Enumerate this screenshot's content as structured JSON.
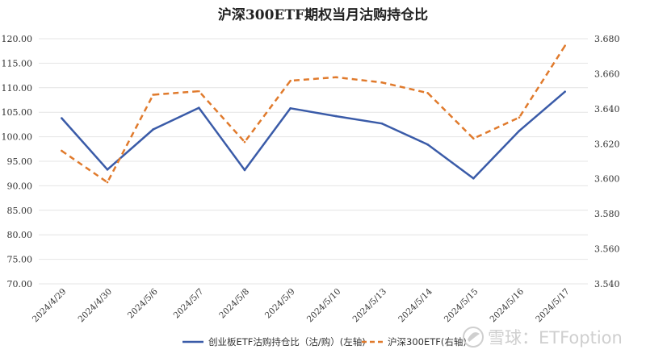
{
  "chart_data": {
    "type": "line",
    "title": "沪深300ETF期权当月沽购持仓比",
    "categories": [
      "2024/4/29",
      "2024/4/30",
      "2024/5/6",
      "2024/5/7",
      "2024/5/8",
      "2024/5/9",
      "2024/5/10",
      "2024/5/13",
      "2024/5/14",
      "2024/5/15",
      "2024/5/16",
      "2024/5/17"
    ],
    "left_axis": {
      "min": 70,
      "max": 120,
      "step": 5,
      "decimals": 2
    },
    "right_axis": {
      "min": 3.54,
      "max": 3.68,
      "step": 0.02,
      "decimals": 3
    },
    "grid": true,
    "legend_position": "bottom",
    "series": [
      {
        "name": "创业板ETF沽购持仓比（沽/购）(左轴)",
        "axis": "left",
        "color": "#3a5ba8",
        "style": "solid",
        "values": [
          103.8,
          93.3,
          101.5,
          105.9,
          93.2,
          105.8,
          104.2,
          102.7,
          98.4,
          91.5,
          101.2,
          109.2
        ]
      },
      {
        "name": "沪深300ETF(右轴)",
        "axis": "right",
        "color": "#e07a2c",
        "style": "dashed",
        "values": [
          3.616,
          3.598,
          3.648,
          3.65,
          3.621,
          3.656,
          3.658,
          3.655,
          3.649,
          3.623,
          3.635,
          3.676
        ]
      }
    ]
  },
  "watermark": {
    "text": "雪球：ETFoption",
    "icon": "snowball-logo-icon"
  }
}
